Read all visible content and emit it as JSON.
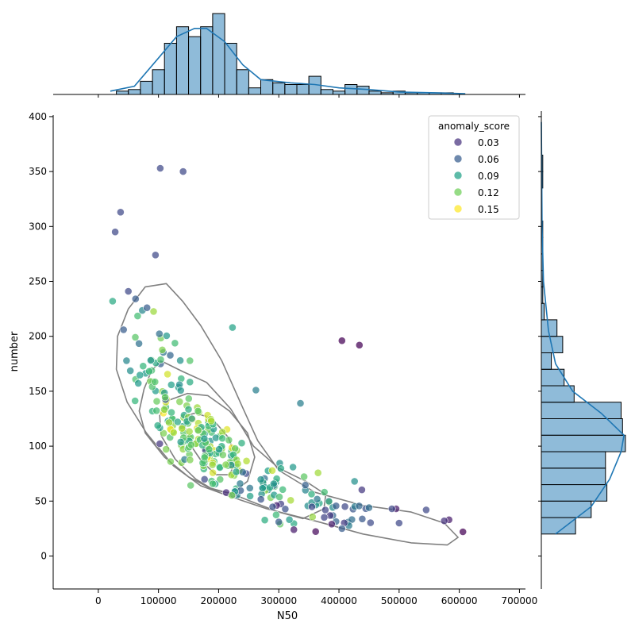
{
  "chart_data": {
    "type": "scatter",
    "subtype": "jointplot-with-kde-contours-and-marginal-histograms",
    "xlabel": "N50",
    "ylabel": "number",
    "xlim": [
      -75000,
      710000
    ],
    "ylim": [
      -30,
      405
    ],
    "x_ticks": [
      0,
      100000,
      200000,
      300000,
      400000,
      500000,
      600000,
      700000
    ],
    "x_tick_labels": [
      "0",
      "100000",
      "200000",
      "300000",
      "400000",
      "500000",
      "600000",
      "700000"
    ],
    "y_ticks": [
      0,
      50,
      100,
      150,
      200,
      250,
      300,
      350,
      400
    ],
    "y_tick_labels": [
      "0",
      "50",
      "100",
      "150",
      "200",
      "250",
      "300",
      "350",
      "400"
    ],
    "grid": false,
    "hue_variable": "anomaly_score",
    "colormap": "viridis",
    "hue_range": [
      0.02,
      0.16
    ],
    "legend": {
      "title": "anomaly_score",
      "placement": "top-right",
      "entries": [
        {
          "label": "0.03",
          "value": 0.03,
          "color": "#46327e"
        },
        {
          "label": "0.06",
          "value": 0.06,
          "color": "#365c8d"
        },
        {
          "label": "0.09",
          "value": 0.09,
          "color": "#1fa187"
        },
        {
          "label": "0.12",
          "value": 0.12,
          "color": "#6ece58"
        },
        {
          "label": "0.15",
          "value": 0.15,
          "color": "#fde725"
        }
      ]
    },
    "outliers": [
      {
        "x": 28000,
        "y": 295,
        "h": 0.05
      },
      {
        "x": 37000,
        "y": 313,
        "h": 0.05
      },
      {
        "x": 103000,
        "y": 353,
        "h": 0.05
      },
      {
        "x": 141000,
        "y": 350,
        "h": 0.05
      },
      {
        "x": 95000,
        "y": 274,
        "h": 0.05
      },
      {
        "x": 50000,
        "y": 241,
        "h": 0.05
      },
      {
        "x": 62000,
        "y": 234,
        "h": 0.06
      },
      {
        "x": 81000,
        "y": 226,
        "h": 0.06
      },
      {
        "x": 42000,
        "y": 206,
        "h": 0.06
      },
      {
        "x": 223000,
        "y": 208,
        "h": 0.1
      },
      {
        "x": 405000,
        "y": 196,
        "h": 0.02
      },
      {
        "x": 434000,
        "y": 192,
        "h": 0.02
      },
      {
        "x": 336000,
        "y": 139,
        "h": 0.08
      },
      {
        "x": 262000,
        "y": 151,
        "h": 0.08
      },
      {
        "x": 606000,
        "y": 22,
        "h": 0.02
      },
      {
        "x": 583000,
        "y": 33,
        "h": 0.03
      },
      {
        "x": 575000,
        "y": 32,
        "h": 0.04
      },
      {
        "x": 545000,
        "y": 42,
        "h": 0.05
      },
      {
        "x": 500000,
        "y": 30,
        "h": 0.05
      },
      {
        "x": 495000,
        "y": 43,
        "h": 0.03
      },
      {
        "x": 488000,
        "y": 43,
        "h": 0.05
      },
      {
        "x": 450000,
        "y": 44,
        "h": 0.07
      },
      {
        "x": 426000,
        "y": 68,
        "h": 0.09
      },
      {
        "x": 410000,
        "y": 45,
        "h": 0.05
      },
      {
        "x": 405000,
        "y": 25,
        "h": 0.06
      },
      {
        "x": 388000,
        "y": 29,
        "h": 0.03
      },
      {
        "x": 325000,
        "y": 24,
        "h": 0.03
      },
      {
        "x": 300000,
        "y": 31,
        "h": 0.06
      }
    ],
    "clusters": [
      {
        "cx": 170000,
        "cy": 105,
        "sx": 42000,
        "sy": 22,
        "r": -0.65,
        "n": 150,
        "h_mean": 0.125,
        "h_sd": 0.02
      },
      {
        "cx": 290000,
        "cy": 57,
        "sx": 55000,
        "sy": 14,
        "r": -0.5,
        "n": 60,
        "h_mean": 0.095,
        "h_sd": 0.025
      },
      {
        "cx": 110000,
        "cy": 170,
        "sx": 30000,
        "sy": 26,
        "r": -0.35,
        "n": 50,
        "h_mean": 0.1,
        "h_sd": 0.02
      },
      {
        "cx": 390000,
        "cy": 40,
        "sx": 35000,
        "sy": 9,
        "r": -0.3,
        "n": 25,
        "h_mean": 0.065,
        "h_sd": 0.02
      }
    ],
    "kde_contours": [
      [
        [
          113000,
          248
        ],
        [
          140000,
          232
        ],
        [
          170000,
          210
        ],
        [
          205000,
          178
        ],
        [
          240000,
          135
        ],
        [
          265000,
          105
        ],
        [
          300000,
          78
        ],
        [
          360000,
          58
        ],
        [
          440000,
          46
        ],
        [
          520000,
          40
        ],
        [
          575000,
          30
        ],
        [
          598000,
          17
        ],
        [
          580000,
          10
        ],
        [
          520000,
          12
        ],
        [
          440000,
          20
        ],
        [
          360000,
          32
        ],
        [
          280000,
          43
        ],
        [
          220000,
          54
        ],
        [
          170000,
          64
        ],
        [
          125000,
          82
        ],
        [
          80000,
          112
        ],
        [
          48000,
          140
        ],
        [
          30000,
          170
        ],
        [
          32000,
          200
        ],
        [
          50000,
          225
        ],
        [
          78000,
          245
        ]
      ],
      [
        [
          103000,
          178
        ],
        [
          140000,
          168
        ],
        [
          180000,
          158
        ],
        [
          220000,
          134
        ],
        [
          258000,
          100
        ],
        [
          300000,
          80
        ],
        [
          345000,
          68
        ],
        [
          378000,
          56
        ],
        [
          375000,
          43
        ],
        [
          340000,
          34
        ],
        [
          300000,
          40
        ],
        [
          262000,
          48
        ],
        [
          225000,
          56
        ],
        [
          185000,
          62
        ],
        [
          150000,
          72
        ],
        [
          110000,
          90
        ],
        [
          78000,
          112
        ],
        [
          68000,
          132
        ],
        [
          76000,
          152
        ],
        [
          88000,
          168
        ]
      ],
      [
        [
          148000,
          148
        ],
        [
          182000,
          146
        ],
        [
          218000,
          132
        ],
        [
          248000,
          112
        ],
        [
          260000,
          90
        ],
        [
          248000,
          68
        ],
        [
          222000,
          57
        ],
        [
          192000,
          60
        ],
        [
          162000,
          70
        ],
        [
          128000,
          88
        ],
        [
          104000,
          110
        ],
        [
          102000,
          128
        ],
        [
          118000,
          142
        ]
      ],
      [
        [
          160000,
          130
        ],
        [
          188000,
          126
        ],
        [
          216000,
          108
        ],
        [
          230000,
          88
        ],
        [
          218000,
          74
        ],
        [
          196000,
          74
        ],
        [
          172000,
          86
        ],
        [
          152000,
          102
        ],
        [
          144000,
          118
        ],
        [
          148000,
          128
        ]
      ]
    ],
    "x_hist": {
      "bin_edges": [
        30000,
        50000,
        70000,
        90000,
        110000,
        130000,
        150000,
        170000,
        190000,
        210000,
        230000,
        250000,
        270000,
        290000,
        310000,
        330000,
        350000,
        370000,
        390000,
        410000,
        430000,
        450000,
        470000,
        490000,
        510000,
        530000,
        550000,
        570000,
        590000,
        610000
      ],
      "counts": [
        2,
        3,
        8,
        15,
        31,
        41,
        35,
        41,
        49,
        31,
        15,
        4,
        9,
        7,
        6,
        6,
        11,
        3,
        2,
        6,
        5,
        2,
        1,
        2,
        1,
        1,
        1,
        1,
        0
      ],
      "kde": [
        [
          20000,
          2
        ],
        [
          60000,
          5
        ],
        [
          100000,
          22
        ],
        [
          130000,
          35
        ],
        [
          160000,
          40
        ],
        [
          180000,
          40
        ],
        [
          210000,
          32
        ],
        [
          240000,
          18
        ],
        [
          270000,
          9
        ],
        [
          320000,
          7
        ],
        [
          360000,
          6
        ],
        [
          400000,
          4
        ],
        [
          450000,
          3
        ],
        [
          500000,
          1.5
        ],
        [
          560000,
          1
        ],
        [
          610000,
          0.5
        ]
      ]
    },
    "y_hist": {
      "bin_edges": [
        20,
        35,
        50,
        65,
        80,
        95,
        110,
        125,
        140,
        155,
        170,
        185,
        200,
        215,
        230,
        245,
        260,
        275,
        290,
        305,
        320,
        335,
        350,
        365
      ],
      "counts": [
        24,
        35,
        46,
        45,
        45,
        59,
        57,
        56,
        23,
        16,
        7,
        15,
        11,
        2,
        1,
        1,
        1,
        1,
        1,
        0,
        0,
        1,
        1
      ],
      "kde": [
        [
          20,
          10
        ],
        [
          45,
          35
        ],
        [
          70,
          48
        ],
        [
          95,
          56
        ],
        [
          110,
          58
        ],
        [
          130,
          42
        ],
        [
          150,
          22
        ],
        [
          175,
          10
        ],
        [
          205,
          5
        ],
        [
          250,
          1.5
        ],
        [
          300,
          0.5
        ],
        [
          350,
          0.3
        ],
        [
          395,
          0
        ]
      ]
    }
  }
}
